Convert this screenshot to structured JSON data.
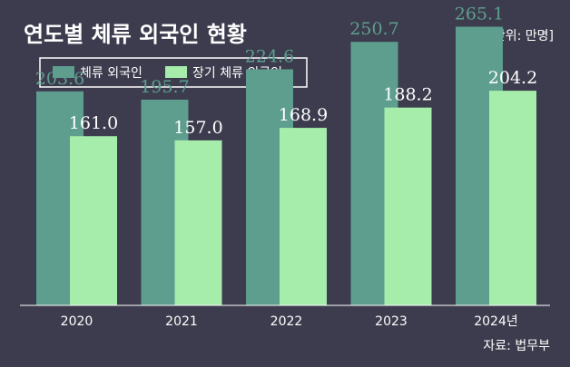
{
  "chart_data": {
    "type": "bar",
    "title": "연도별 체류 외국인 현황",
    "unit": "[단위: 만명]",
    "source": "자료: 법무부",
    "categories": [
      "2020",
      "2021",
      "2022",
      "2023",
      "2024년"
    ],
    "series": [
      {
        "name": "체류 외국인",
        "values": [
          203.6,
          195.7,
          224.6,
          250.7,
          265.1
        ],
        "color": "#5e9e8e",
        "label_color": "#5e9e8e"
      },
      {
        "name": "장기 체류 외국인",
        "values": [
          161.0,
          157.0,
          168.9,
          188.2,
          204.2
        ],
        "color": "#a6ecab",
        "label_color": "#ffffff"
      }
    ],
    "ylim": [
      0,
      300
    ],
    "grid": false,
    "legend": "top-left"
  }
}
